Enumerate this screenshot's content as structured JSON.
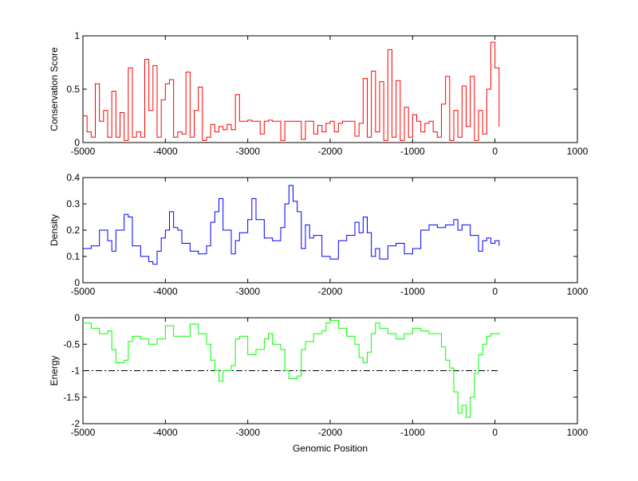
{
  "chart_data": [
    {
      "type": "line",
      "title": "",
      "xlabel": "",
      "ylabel": "Conservation Score",
      "xlim": [
        -5000,
        1000
      ],
      "ylim": [
        0,
        1
      ],
      "xticks": [
        -5000,
        -4000,
        -3000,
        -2000,
        -1000,
        0,
        1000
      ],
      "yticks": [
        0,
        0.5,
        1
      ],
      "ytick_labels": [
        "0",
        "0.5",
        "1"
      ],
      "grid": false,
      "series": [
        {
          "name": "conservation",
          "color": "#ff0000",
          "x": [
            -5000,
            -4950,
            -4900,
            -4850,
            -4800,
            -4750,
            -4700,
            -4650,
            -4600,
            -4550,
            -4500,
            -4450,
            -4400,
            -4350,
            -4300,
            -4250,
            -4200,
            -4150,
            -4100,
            -4050,
            -4000,
            -3950,
            -3900,
            -3850,
            -3800,
            -3750,
            -3700,
            -3650,
            -3600,
            -3550,
            -3500,
            -3450,
            -3400,
            -3350,
            -3300,
            -3250,
            -3200,
            -3150,
            -3100,
            -3050,
            -3000,
            -2950,
            -2900,
            -2850,
            -2800,
            -2750,
            -2700,
            -2650,
            -2600,
            -2550,
            -2500,
            -2450,
            -2400,
            -2350,
            -2300,
            -2250,
            -2200,
            -2150,
            -2100,
            -2050,
            -2000,
            -1950,
            -1900,
            -1850,
            -1800,
            -1750,
            -1700,
            -1650,
            -1600,
            -1550,
            -1500,
            -1450,
            -1400,
            -1350,
            -1300,
            -1250,
            -1200,
            -1150,
            -1100,
            -1050,
            -1000,
            -950,
            -900,
            -850,
            -800,
            -750,
            -700,
            -650,
            -600,
            -550,
            -500,
            -450,
            -400,
            -350,
            -300,
            -250,
            -200,
            -150,
            -100,
            -50,
            0,
            50
          ],
          "y": [
            0.25,
            0.1,
            0.05,
            0.55,
            0.2,
            0.3,
            0.05,
            0.48,
            0.05,
            0.28,
            0.02,
            0.7,
            0.05,
            0.1,
            0.05,
            0.78,
            0.3,
            0.72,
            0.05,
            0.4,
            0.55,
            0.59,
            0.05,
            0.1,
            0.08,
            0.66,
            0.05,
            0.3,
            0.52,
            0.02,
            0.05,
            0.17,
            0.1,
            0.15,
            0.12,
            0.17,
            0.12,
            0.45,
            0.2,
            0.2,
            0.21,
            0.2,
            0.2,
            0.08,
            0.2,
            0.21,
            0.2,
            0.2,
            0.02,
            0.2,
            0.2,
            0.2,
            0.2,
            0.03,
            0.2,
            0.2,
            0.08,
            0.16,
            0.1,
            0.18,
            0.2,
            0.1,
            0.18,
            0.2,
            0.2,
            0.2,
            0.06,
            0.18,
            0.6,
            0.05,
            0.67,
            0.1,
            0.57,
            0.02,
            0.87,
            0.05,
            0.58,
            0.02,
            0.33,
            0.05,
            0.26,
            0.2,
            0.1,
            0.18,
            0.2,
            0.1,
            0.05,
            0.36,
            0.62,
            0.02,
            0.3,
            0.05,
            0.53,
            0.15,
            0.62,
            0.02,
            0.3,
            0.08,
            0.5,
            0.94,
            0.7,
            0.15
          ]
        }
      ]
    },
    {
      "type": "line",
      "xlabel": "",
      "ylabel": "Density",
      "xlim": [
        -5000,
        1000
      ],
      "ylim": [
        0,
        0.4
      ],
      "xticks": [
        -5000,
        -4000,
        -3000,
        -2000,
        -1000,
        0,
        1000
      ],
      "yticks": [
        0,
        0.1,
        0.2,
        0.3,
        0.4
      ],
      "ytick_labels": [
        "0",
        "0.1",
        "0.2",
        "0.3",
        "0.4"
      ],
      "grid": false,
      "series": [
        {
          "name": "density",
          "color": "#0000ff",
          "x": [
            -5000,
            -4900,
            -4800,
            -4700,
            -4650,
            -4600,
            -4500,
            -4450,
            -4400,
            -4300,
            -4200,
            -4150,
            -4100,
            -4050,
            -4000,
            -3950,
            -3900,
            -3850,
            -3800,
            -3700,
            -3600,
            -3500,
            -3450,
            -3400,
            -3350,
            -3300,
            -3200,
            -3150,
            -3100,
            -3000,
            -2950,
            -2900,
            -2800,
            -2700,
            -2600,
            -2550,
            -2500,
            -2450,
            -2400,
            -2350,
            -2300,
            -2250,
            -2200,
            -2100,
            -2000,
            -1900,
            -1800,
            -1700,
            -1650,
            -1600,
            -1550,
            -1500,
            -1450,
            -1400,
            -1300,
            -1200,
            -1100,
            -1000,
            -900,
            -800,
            -700,
            -600,
            -500,
            -450,
            -400,
            -300,
            -200,
            -150,
            -100,
            -50,
            0,
            50
          ],
          "y": [
            0.13,
            0.14,
            0.2,
            0.16,
            0.12,
            0.2,
            0.26,
            0.25,
            0.14,
            0.1,
            0.08,
            0.07,
            0.12,
            0.17,
            0.2,
            0.27,
            0.21,
            0.2,
            0.15,
            0.12,
            0.11,
            0.14,
            0.23,
            0.27,
            0.32,
            0.2,
            0.11,
            0.16,
            0.19,
            0.24,
            0.32,
            0.24,
            0.17,
            0.16,
            0.21,
            0.3,
            0.37,
            0.31,
            0.27,
            0.13,
            0.22,
            0.17,
            0.18,
            0.1,
            0.09,
            0.16,
            0.18,
            0.23,
            0.19,
            0.25,
            0.19,
            0.1,
            0.13,
            0.09,
            0.14,
            0.15,
            0.11,
            0.13,
            0.2,
            0.22,
            0.21,
            0.22,
            0.24,
            0.2,
            0.22,
            0.18,
            0.12,
            0.16,
            0.17,
            0.15,
            0.16,
            0.14
          ]
        }
      ]
    },
    {
      "type": "line",
      "xlabel": "Genomic Position",
      "ylabel": "Energy",
      "xlim": [
        -5000,
        1000
      ],
      "ylim": [
        -2,
        0
      ],
      "xticks": [
        -5000,
        -4000,
        -3000,
        -2000,
        -1000,
        0,
        1000
      ],
      "yticks": [
        -2,
        -1.5,
        -1,
        -0.5,
        0
      ],
      "ytick_labels": [
        "-2",
        "-1.5",
        "-1",
        "-0.5",
        "0"
      ],
      "grid": false,
      "threshold": {
        "y": -1,
        "x": [
          -5000,
          50
        ],
        "color": "#000000",
        "style": "dash-dot"
      },
      "series": [
        {
          "name": "energy",
          "color": "#00ff00",
          "x": [
            -5000,
            -4900,
            -4800,
            -4700,
            -4650,
            -4600,
            -4500,
            -4450,
            -4400,
            -4300,
            -4200,
            -4100,
            -4000,
            -3900,
            -3800,
            -3700,
            -3600,
            -3500,
            -3450,
            -3400,
            -3350,
            -3300,
            -3200,
            -3150,
            -3100,
            -3000,
            -2900,
            -2800,
            -2750,
            -2700,
            -2600,
            -2550,
            -2500,
            -2400,
            -2350,
            -2300,
            -2200,
            -2100,
            -2050,
            -2000,
            -1900,
            -1800,
            -1700,
            -1650,
            -1600,
            -1550,
            -1500,
            -1450,
            -1400,
            -1300,
            -1200,
            -1100,
            -1000,
            -900,
            -800,
            -700,
            -650,
            -600,
            -550,
            -500,
            -450,
            -400,
            -350,
            -300,
            -250,
            -200,
            -150,
            -100,
            -50,
            0,
            50
          ],
          "y": [
            -0.1,
            -0.2,
            -0.3,
            -0.25,
            -0.6,
            -0.85,
            -0.8,
            -0.45,
            -0.35,
            -0.4,
            -0.5,
            -0.4,
            -0.15,
            -0.35,
            -0.35,
            -0.12,
            -0.3,
            -0.5,
            -0.8,
            -1.0,
            -1.2,
            -1.0,
            -0.9,
            -0.4,
            -0.35,
            -0.7,
            -0.6,
            -0.4,
            -0.3,
            -0.5,
            -0.6,
            -1.0,
            -1.15,
            -1.1,
            -0.6,
            -0.45,
            -0.3,
            -0.25,
            -0.1,
            -0.05,
            -0.2,
            -0.35,
            -0.5,
            -0.75,
            -0.85,
            -0.65,
            -0.3,
            -0.1,
            -0.2,
            -0.3,
            -0.4,
            -0.3,
            -0.2,
            -0.25,
            -0.3,
            -0.3,
            -0.55,
            -0.8,
            -0.95,
            -1.4,
            -1.8,
            -1.65,
            -1.88,
            -1.5,
            -1.05,
            -0.7,
            -0.5,
            -0.35,
            -0.3,
            -0.3,
            -0.28
          ]
        }
      ]
    }
  ]
}
